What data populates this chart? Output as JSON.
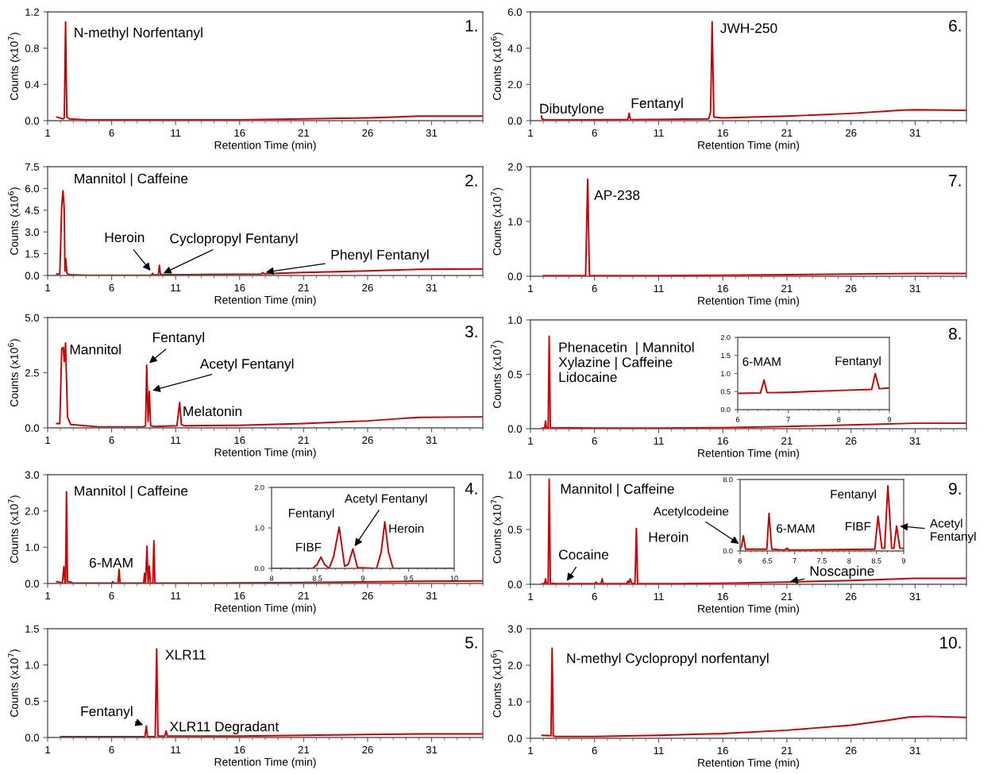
{
  "chart_data": [
    {
      "type": "line",
      "title": "1.",
      "xlabel": "Retention Time (min)",
      "ylabel": "Counts (x10$^{7}$)",
      "color": "#cc0000",
      "xlim": [
        1,
        35
      ],
      "xticks": [
        1,
        6,
        11,
        16,
        21,
        26,
        31
      ],
      "ylim": [
        0,
        1.2
      ],
      "yticks": [
        {
          "value": 0,
          "label": "0.0"
        },
        0.4,
        0.8,
        1.2
      ],
      "x": [
        1.7,
        2.2,
        2.3,
        2.4,
        2.5,
        2.7,
        4,
        10,
        16,
        21,
        26,
        30,
        32,
        35
      ],
      "values": [
        0.04,
        0.02,
        0.03,
        1.09,
        0.04,
        0.02,
        0.01,
        0.01,
        0.01,
        0.02,
        0.03,
        0.05,
        0.05,
        0.05
      ],
      "annotations": [
        {
          "text": "N-methyl Norfentanyl",
          "x": 2.4,
          "y": 1.09
        }
      ]
    },
    {
      "type": "line",
      "title": "2.",
      "xlabel": "Retention Time (min)",
      "ylabel": "Counts (x10$^{6}$)",
      "color": "#cc0000",
      "xlim": [
        1,
        35
      ],
      "xticks": [
        1,
        6,
        11,
        16,
        21,
        26,
        31
      ],
      "ylim": [
        0,
        7.5
      ],
      "yticks": [
        {
          "value": 0,
          "label": "0.0"
        },
        1.5,
        {
          "value": 3,
          "label": "3.0"
        },
        4.5,
        {
          "value": 6,
          "label": "6.0"
        },
        7.5
      ],
      "x": [
        1.7,
        1.95,
        2.1,
        2.2,
        2.3,
        2.35,
        2.42,
        2.5,
        2.7,
        4,
        9.1,
        9.2,
        9.3,
        9.65,
        9.73,
        9.82,
        12,
        17.7,
        17.8,
        17.9,
        21,
        26,
        30,
        35
      ],
      "values": [
        0.1,
        0.1,
        4.8,
        5.85,
        4.5,
        0.3,
        1.15,
        0.15,
        0.05,
        0.02,
        0.03,
        0.15,
        0.04,
        0.04,
        0.7,
        0.05,
        0.06,
        0.1,
        0.2,
        0.12,
        0.2,
        0.32,
        0.42,
        0.45
      ],
      "annotations": [
        {
          "text": "Mannitol | Caffeine",
          "x": 2.2,
          "y": 5.85
        },
        {
          "text": "Heroin",
          "x": 9.2,
          "y": 0.15
        },
        {
          "text": "Cyclopropyl Fentanyl",
          "x": 9.82,
          "y": 0.05
        },
        {
          "text": "Phenyl Fentanyl",
          "x": 17.8,
          "y": 0.2
        }
      ]
    },
    {
      "type": "line",
      "title": "3.",
      "xlabel": "Retention Time (min)",
      "ylabel": "Counts (x10$^{6}$)",
      "color": "#cc0000",
      "xlim": [
        1,
        35
      ],
      "xticks": [
        1,
        6,
        11,
        16,
        21,
        26,
        31
      ],
      "ylim": [
        0,
        5
      ],
      "yticks": [
        {
          "value": 0,
          "label": "0.0"
        },
        2.5,
        {
          "value": 5,
          "label": "5.0"
        }
      ],
      "x": [
        1.7,
        1.95,
        2.1,
        2.22,
        2.3,
        2.4,
        2.55,
        2.8,
        5,
        8.5,
        8.65,
        8.74,
        8.85,
        8.94,
        9.05,
        9.4,
        11.1,
        11.2,
        11.31,
        11.45,
        11.65,
        12,
        16,
        21,
        26,
        30,
        35
      ],
      "values": [
        0.2,
        0.2,
        3.6,
        3.65,
        3.0,
        3.85,
        0.5,
        0.15,
        0.05,
        0.05,
        0.1,
        2.84,
        0.3,
        1.66,
        0.1,
        0.06,
        0.1,
        0.6,
        1.15,
        0.15,
        0.1,
        0.1,
        0.12,
        0.2,
        0.32,
        0.48,
        0.5
      ],
      "annotations": [
        {
          "text": "Mannitol",
          "x": 2.4,
          "y": 3.85
        },
        {
          "text": "Fentanyl",
          "x": 8.74,
          "y": 2.84
        },
        {
          "text": "Acetyl Fentanyl",
          "x": 8.94,
          "y": 1.66
        },
        {
          "text": "Melatonin",
          "x": 11.31,
          "y": 1.15
        }
      ]
    },
    {
      "type": "line",
      "title": "4.",
      "xlabel": "Retention Time (min)",
      "ylabel": "Counts (x10$^{7}$)",
      "color": "#cc0000",
      "xlim": [
        1,
        35
      ],
      "xticks": [
        1,
        6,
        11,
        16,
        21,
        26,
        31
      ],
      "ylim": [
        0,
        3
      ],
      "yticks": [
        {
          "value": 0,
          "label": "0.0"
        },
        {
          "value": 1,
          "label": "1.0"
        },
        {
          "value": 2,
          "label": "2.0"
        },
        {
          "value": 3,
          "label": "3.0"
        }
      ],
      "x": [
        1.7,
        2.15,
        2.27,
        2.35,
        2.4,
        2.47,
        2.55,
        2.8,
        3,
        6.0,
        6.09,
        6.18,
        6.5,
        6.58,
        6.66,
        8.5,
        8.57,
        8.65,
        8.76,
        8.85,
        8.94,
        9.03,
        9.22,
        9.3,
        9.38,
        12,
        21,
        30,
        35
      ],
      "values": [
        0.05,
        0.02,
        0.47,
        0.02,
        0.02,
        2.53,
        0.05,
        0.04,
        0.01,
        0.01,
        0.05,
        0.01,
        0.01,
        0.39,
        0.01,
        0.01,
        0.28,
        0.01,
        1.03,
        0.01,
        0.48,
        0.01,
        0.01,
        1.18,
        0.01,
        0.01,
        0.03,
        0.06,
        0.07
      ],
      "annotations": [
        {
          "text": "Mannitol | Caffeine",
          "x": 2.47,
          "y": 2.53
        },
        {
          "text": "6-MAM",
          "x": 6.58,
          "y": 0.39
        }
      ]
    },
    {
      "type": "line",
      "color": "#cc0000",
      "xlim": [
        8,
        10
      ],
      "xticks": [
        8,
        8.5,
        9,
        9.5,
        10
      ],
      "ylim": [
        0,
        2
      ],
      "yticks": [
        {
          "value": 0,
          "label": "0.0"
        },
        {
          "value": 1,
          "label": "1.0"
        },
        {
          "value": 2,
          "label": "2.0"
        }
      ],
      "x": [
        8,
        8.45,
        8.5,
        8.54,
        8.58,
        8.63,
        8.68,
        8.74,
        8.8,
        8.84,
        8.89,
        8.94,
        9.15,
        9.2,
        9.24,
        9.28,
        9.33,
        10
      ],
      "values": [
        0,
        0,
        0.1,
        0.28,
        0.1,
        0,
        0.3,
        1.02,
        0.05,
        0.1,
        0.48,
        0.02,
        0,
        0.4,
        1.15,
        0.4,
        0,
        0
      ],
      "annotations": [
        {
          "text": "FIBF",
          "x": 8.54,
          "y": 0.28
        },
        {
          "text": "Fentanyl",
          "x": 8.74,
          "y": 1.02
        },
        {
          "text": "Acetyl Fentanyl",
          "x": 8.89,
          "y": 0.48
        },
        {
          "text": "Heroin",
          "x": 9.24,
          "y": 1.15
        }
      ]
    },
    {
      "type": "line",
      "title": "5.",
      "xlabel": "Retention Time (min)",
      "ylabel": "Counts (x10$^{7}$)",
      "color": "#cc0000",
      "xlim": [
        1,
        35
      ],
      "xticks": [
        1,
        6,
        11,
        16,
        21,
        26,
        31
      ],
      "ylim": [
        0,
        1.5
      ],
      "yticks": [
        {
          "value": 0,
          "label": "0.0"
        },
        0.5,
        {
          "value": 1,
          "label": "1.0"
        },
        1.5
      ],
      "x": [
        2,
        8.6,
        8.71,
        8.8,
        9.4,
        9.52,
        9.62,
        10.15,
        10.26,
        10.35,
        16,
        21,
        26,
        30,
        35
      ],
      "values": [
        0.01,
        0.01,
        0.16,
        0.01,
        0.01,
        1.22,
        0.02,
        0.02,
        0.09,
        0.02,
        0.02,
        0.03,
        0.04,
        0.05,
        0.05
      ],
      "annotations": [
        {
          "text": "XLR11",
          "x": 9.52,
          "y": 1.22
        },
        {
          "text": "Fentanyl",
          "x": 8.71,
          "y": 0.16
        },
        {
          "text": "XLR11 Degradant",
          "x": 10.26,
          "y": 0.09
        }
      ]
    },
    {
      "type": "line",
      "title": "6.",
      "xlabel": "Retention Time (min)",
      "ylabel": "Counts (x10$^{6}$)",
      "color": "#cc0000",
      "xlim": [
        1,
        35
      ],
      "xticks": [
        1,
        6,
        11,
        16,
        21,
        26,
        31
      ],
      "ylim": [
        0,
        6
      ],
      "yticks": [
        {
          "value": 0,
          "label": "0.0"
        },
        {
          "value": 2,
          "label": "2.0"
        },
        {
          "value": 4,
          "label": "4.0"
        },
        {
          "value": 6,
          "label": "6.0"
        }
      ],
      "x": [
        1.85,
        1.9,
        2.1,
        5,
        8.6,
        8.69,
        8.8,
        14.9,
        15.05,
        15.17,
        15.3,
        16,
        21,
        26,
        30,
        31,
        35
      ],
      "values": [
        0.27,
        0.1,
        0.05,
        0.05,
        0.06,
        0.41,
        0.06,
        0.1,
        0.5,
        5.45,
        0.2,
        0.15,
        0.25,
        0.4,
        0.58,
        0.6,
        0.57
      ],
      "annotations": [
        {
          "text": "JWH-250",
          "x": 15.17,
          "y": 5.45
        },
        {
          "text": "Dibutylone",
          "x": 1.85,
          "y": 0.27
        },
        {
          "text": "Fentanyl",
          "x": 8.69,
          "y": 0.41
        }
      ]
    },
    {
      "type": "line",
      "title": "7.",
      "xlabel": "Retention Time (min)",
      "ylabel": "Counts (x10$^{7}$)",
      "color": "#cc0000",
      "xlim": [
        1,
        35
      ],
      "xticks": [
        1,
        6,
        11,
        16,
        21,
        26,
        31
      ],
      "ylim": [
        0,
        2
      ],
      "yticks": [
        {
          "value": 0,
          "label": "0.0"
        },
        {
          "value": 1,
          "label": "1.0"
        },
        {
          "value": 2,
          "label": "2.0"
        }
      ],
      "x": [
        2,
        5.3,
        5.46,
        5.6,
        11,
        16,
        21,
        26,
        31,
        35
      ],
      "values": [
        0.01,
        0.01,
        1.77,
        0.01,
        0.01,
        0.02,
        0.03,
        0.04,
        0.05,
        0.05
      ],
      "annotations": [
        {
          "text": "AP-238",
          "x": 5.46,
          "y": 1.77
        }
      ]
    },
    {
      "type": "line",
      "title": "8.",
      "xlabel": "Retention Time (min)",
      "ylabel": "Counts (x10$^{7}$)",
      "color": "#cc0000",
      "xlim": [
        1,
        35
      ],
      "xticks": [
        1,
        6,
        11,
        16,
        21,
        26,
        31
      ],
      "ylim": [
        0,
        1
      ],
      "yticks": [
        {
          "value": 0,
          "label": "0.0"
        },
        0.5,
        {
          "value": 1,
          "label": "1.0"
        }
      ],
      "x": [
        1.9,
        2.1,
        2.18,
        2.25,
        2.38,
        2.46,
        2.55,
        6,
        11,
        16,
        21,
        26,
        31,
        35
      ],
      "values": [
        0.005,
        0.005,
        0.07,
        0.005,
        0.005,
        0.85,
        0.01,
        0.005,
        0.005,
        0.01,
        0.02,
        0.035,
        0.05,
        0.05
      ],
      "annotations": [
        {
          "text": "Phenacetin  | Mannitol\nXylazine | Caffeine\nLidocaine",
          "x": 2.46,
          "y": 0.85
        }
      ]
    },
    {
      "type": "line",
      "color": "#cc0000",
      "xlim": [
        6,
        9
      ],
      "xticks": [
        6,
        7,
        8,
        9
      ],
      "ylim": [
        0,
        2
      ],
      "yticks": [
        {
          "value": 0,
          "label": "0.0"
        },
        0.5,
        {
          "value": 1,
          "label": "1.0"
        },
        1.5,
        {
          "value": 2,
          "label": "2.0"
        }
      ],
      "x": [
        6,
        6.45,
        6.52,
        6.58,
        7,
        8,
        8.65,
        8.72,
        8.8,
        9
      ],
      "values": [
        0.45,
        0.46,
        0.82,
        0.47,
        0.48,
        0.53,
        0.56,
        1.0,
        0.58,
        0.6
      ],
      "annotations": [
        {
          "text": "6-MAM",
          "x": 6.52,
          "y": 0.82
        },
        {
          "text": "Fentanyl",
          "x": 8.72,
          "y": 1.0
        }
      ]
    },
    {
      "type": "line",
      "title": "9.",
      "xlabel": "Retention Time (min)",
      "ylabel": "Counts (x10$^{7}$)",
      "color": "#cc0000",
      "xlim": [
        1,
        35
      ],
      "xticks": [
        1,
        6,
        11,
        16,
        21,
        26,
        31
      ],
      "ylim": [
        0,
        1
      ],
      "yticks": [
        {
          "value": 0,
          "label": "0.0"
        },
        0.5,
        {
          "value": 1,
          "label": "1.0"
        }
      ],
      "x": [
        1.9,
        2.1,
        2.18,
        2.25,
        2.38,
        2.46,
        2.55,
        3,
        6.0,
        6.11,
        6.2,
        6.5,
        6.59,
        6.68,
        8.5,
        8.6,
        8.68,
        8.78,
        8.88,
        9.15,
        9.26,
        9.36,
        12,
        16,
        21,
        26,
        31,
        35
      ],
      "values": [
        0.005,
        0.005,
        0.05,
        0.005,
        0.005,
        0.96,
        0.01,
        0.005,
        0.005,
        0.02,
        0.005,
        0.005,
        0.05,
        0.005,
        0.005,
        0.03,
        0.01,
        0.05,
        0.01,
        0.005,
        0.51,
        0.005,
        0.005,
        0.01,
        0.02,
        0.035,
        0.055,
        0.055
      ],
      "annotations": [
        {
          "text": "Mannitol | Caffeine",
          "x": 2.46,
          "y": 0.96
        },
        {
          "text": "Heroin",
          "x": 9.26,
          "y": 0.51
        },
        {
          "text": "Cocaine",
          "x": 3.7,
          "y": 0.005
        },
        {
          "text": "Noscapine",
          "x": 21,
          "y": 0.02
        }
      ]
    },
    {
      "type": "line",
      "color": "#cc0000",
      "xlim": [
        6,
        9
      ],
      "xticks": [
        6,
        6.5,
        7,
        7.5,
        8,
        8.5,
        9
      ],
      "ylim": [
        0,
        8
      ],
      "yticks": [
        {
          "value": 0,
          "label": "0.0"
        },
        {
          "value": 8,
          "label": "8.0"
        }
      ],
      "x": [
        6,
        6.03,
        6.06,
        6.1,
        6.49,
        6.53,
        6.58,
        6.82,
        6.86,
        6.9,
        8.47,
        8.53,
        8.6,
        8.65,
        8.71,
        8.78,
        8.82,
        8.87,
        8.93,
        9
      ],
      "values": [
        0.1,
        0.6,
        1.7,
        0.2,
        0.2,
        4.2,
        0.2,
        0.1,
        0.3,
        0.1,
        0.2,
        3.9,
        0.3,
        0.3,
        7.3,
        0.3,
        0.3,
        2.8,
        0.3,
        0.3
      ],
      "annotations": [
        {
          "text": "Acetylcodeine",
          "x": 6.03,
          "y": 0.6
        },
        {
          "text": "6-MAM",
          "x": 6.53,
          "y": 4.2
        },
        {
          "text": "Fentanyl",
          "x": 8.71,
          "y": 7.3
        },
        {
          "text": "FIBF",
          "x": 8.53,
          "y": 3.9
        },
        {
          "text": "Acetyl\nFentanyl",
          "x": 8.87,
          "y": 2.8
        }
      ]
    },
    {
      "type": "line",
      "title": "10.",
      "xlabel": "Retention Time (min)",
      "ylabel": "Counts (x10$^{6}$)",
      "color": "#cc0000",
      "xlim": [
        1,
        35
      ],
      "xticks": [
        1,
        6,
        11,
        16,
        21,
        26,
        31
      ],
      "ylim": [
        0,
        3
      ],
      "yticks": [
        {
          "value": 0,
          "label": "0.0"
        },
        {
          "value": 1,
          "label": "1.0"
        },
        {
          "value": 2,
          "label": "2.0"
        },
        {
          "value": 3,
          "label": "3.0"
        }
      ],
      "x": [
        1.9,
        2.6,
        2.69,
        2.78,
        3,
        6,
        11,
        16,
        21,
        26,
        29,
        30.5,
        32,
        35
      ],
      "values": [
        0.08,
        0.07,
        2.47,
        0.06,
        0.05,
        0.05,
        0.08,
        0.13,
        0.22,
        0.36,
        0.5,
        0.58,
        0.6,
        0.57
      ],
      "annotations": [
        {
          "text": "N-methyl Cyclopropyl norfentanyl",
          "x": 2.69,
          "y": 2.47
        }
      ]
    }
  ]
}
